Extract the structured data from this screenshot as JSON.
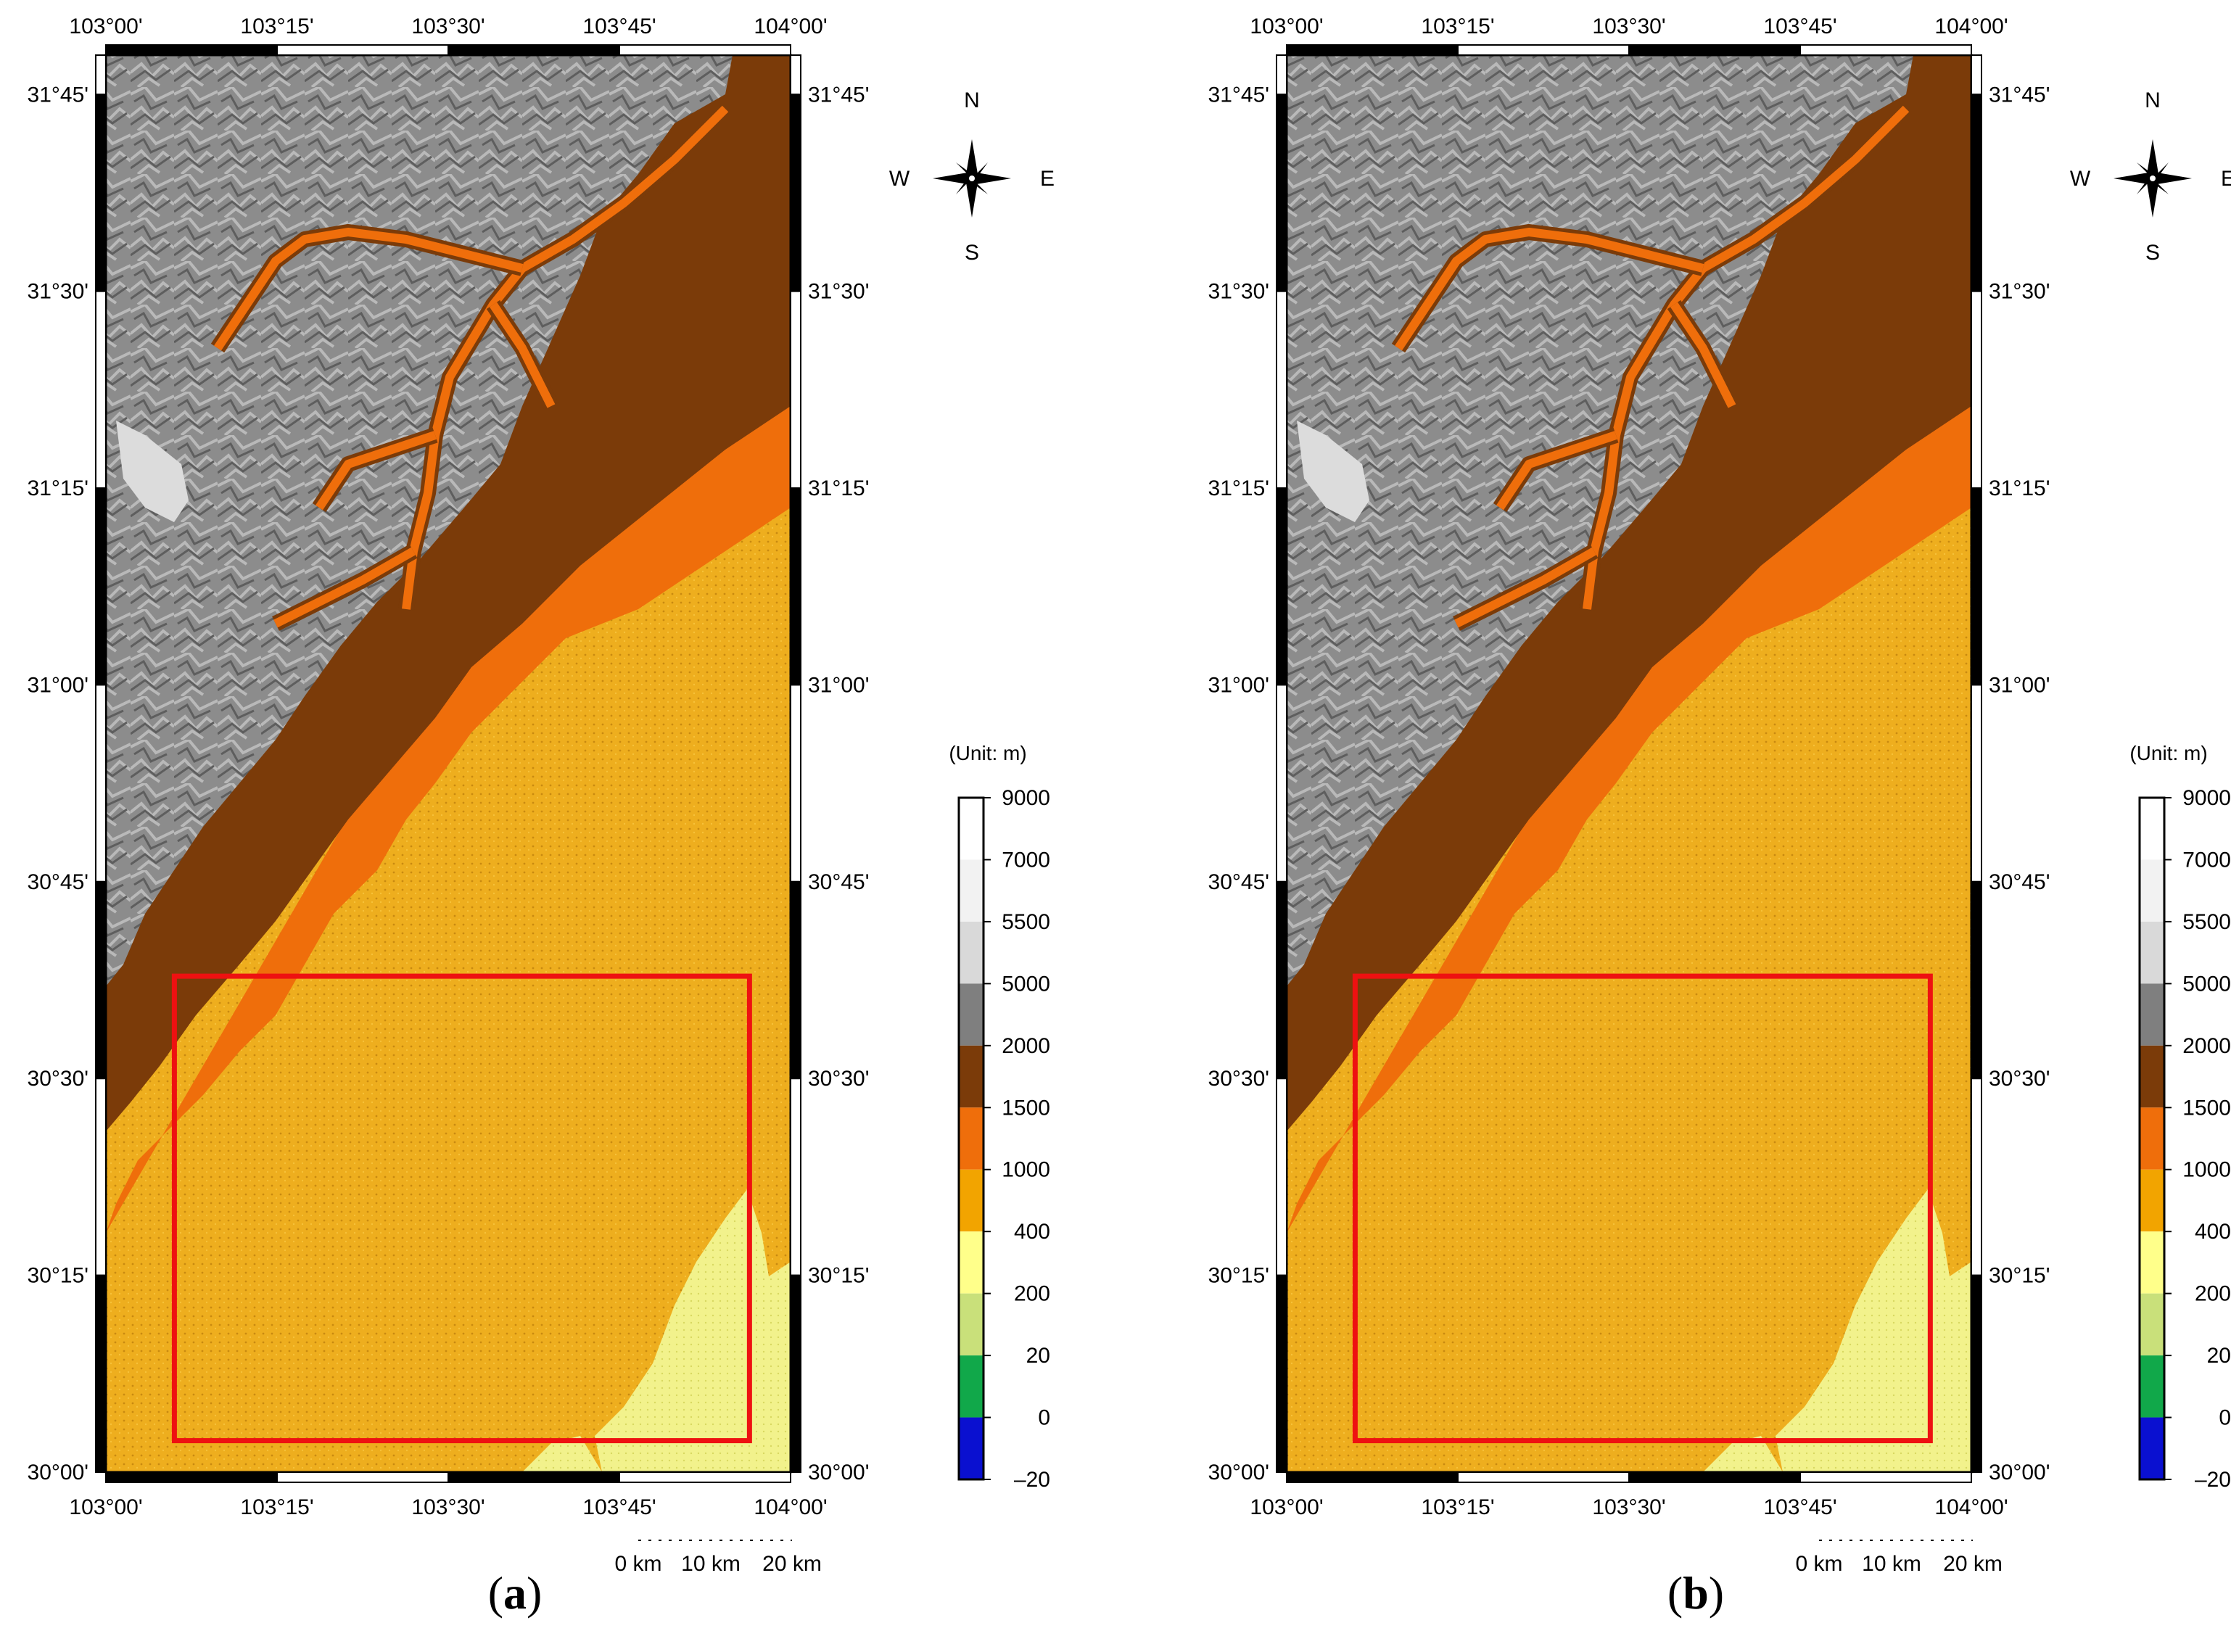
{
  "panels": [
    {
      "id": "a",
      "caption": "a"
    },
    {
      "id": "b",
      "caption": "b"
    }
  ],
  "map": {
    "lon_ticks": [
      "103°00'",
      "103°15'",
      "103°30'",
      "103°45'",
      "104°00'"
    ],
    "lat_ticks": [
      "31°45'",
      "31°30'",
      "31°15'",
      "31°00'",
      "30°45'",
      "30°30'",
      "30°15'",
      "30°00'"
    ],
    "lon_range": [
      103.0,
      104.0
    ],
    "lat_range": [
      30.0,
      31.8
    ]
  },
  "compass": {
    "n": "N",
    "s": "S",
    "e": "E",
    "w": "W"
  },
  "legend": {
    "unit": "(Unit: m)",
    "labels": [
      "9000",
      "7000",
      "5500",
      "5000",
      "2000",
      "1500",
      "1000",
      "400",
      "200",
      "20",
      "0",
      "–20"
    ],
    "colors": [
      "#ffffff",
      "#f2f2f2",
      "#d9d9d9",
      "#7f7f7f",
      "#7b3b09",
      "#ef6e0b",
      "#f2a400",
      "#ffff8a",
      "#c9e07a",
      "#11a84a",
      "#0a10d0"
    ]
  },
  "scalebar": {
    "labels": [
      "0 km",
      "10 km",
      "20 km"
    ]
  },
  "study_area": {
    "lon_range": [
      103.1,
      103.94
    ],
    "lat_range": [
      30.04,
      30.63
    ],
    "color": "#ee1111"
  }
}
